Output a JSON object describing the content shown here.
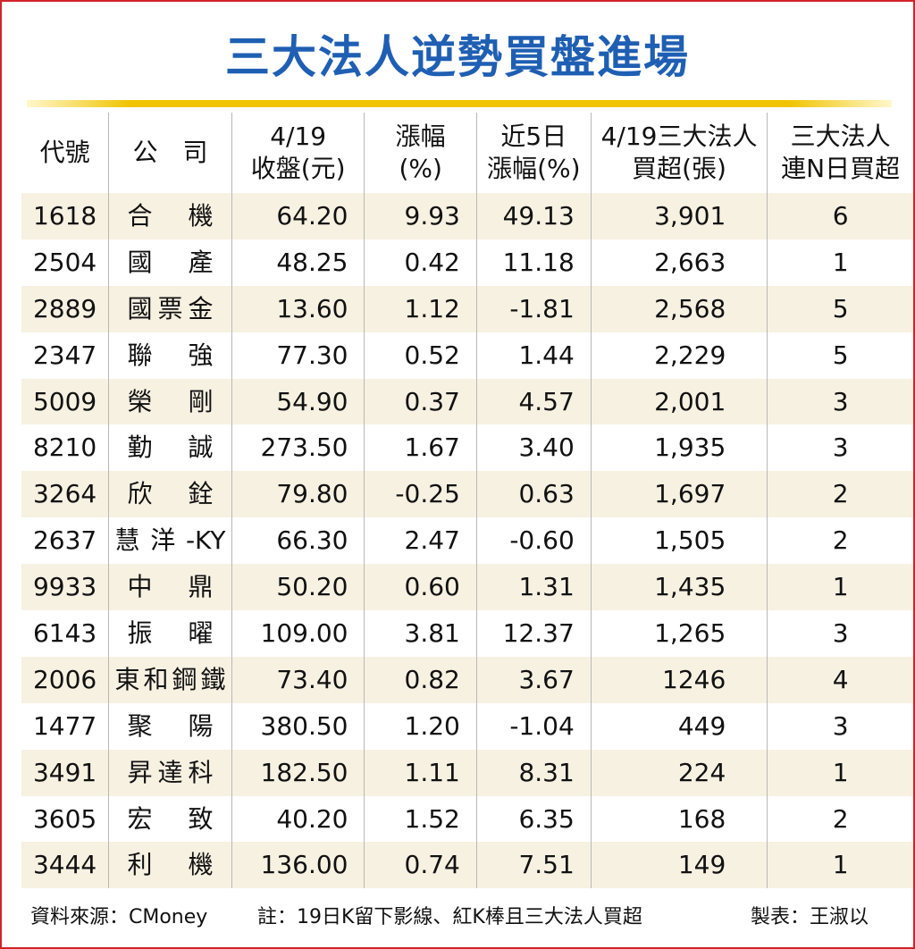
{
  "title": "三大法人逆勢買盤進場",
  "headers": {
    "code": "代號",
    "company": "公　司",
    "close_l1": "4/19",
    "close_l2": "收盤(元)",
    "change_l1": "漲幅",
    "change_l2": "(%)",
    "week_l1": "近5日",
    "week_l2": "漲幅(%)",
    "buy_l1": "4/19三大法人",
    "buy_l2": "買超(張)",
    "days_l1": "三大法人",
    "days_l2": "連N日買超"
  },
  "rows": [
    {
      "code": "1618",
      "name": "合　機",
      "close": "64.20",
      "chg": "9.93",
      "chg5": "49.13",
      "buy": "3,901",
      "days": "6"
    },
    {
      "code": "2504",
      "name": "國　產",
      "close": "48.25",
      "chg": "0.42",
      "chg5": "11.18",
      "buy": "2,663",
      "days": "1"
    },
    {
      "code": "2889",
      "name": "國票金",
      "close": "13.60",
      "chg": "1.12",
      "chg5": "-1.81",
      "buy": "2,568",
      "days": "5"
    },
    {
      "code": "2347",
      "name": "聯　強",
      "close": "77.30",
      "chg": "0.52",
      "chg5": "1.44",
      "buy": "2,229",
      "days": "5"
    },
    {
      "code": "5009",
      "name": "榮　剛",
      "close": "54.90",
      "chg": "0.37",
      "chg5": "4.57",
      "buy": "2,001",
      "days": "3"
    },
    {
      "code": "8210",
      "name": "勤　誠",
      "close": "273.50",
      "chg": "1.67",
      "chg5": "3.40",
      "buy": "1,935",
      "days": "3"
    },
    {
      "code": "3264",
      "name": "欣　銓",
      "close": "79.80",
      "chg": "-0.25",
      "chg5": "0.63",
      "buy": "1,697",
      "days": "2"
    },
    {
      "code": "2637",
      "name": "慧洋-KY",
      "close": "66.30",
      "chg": "2.47",
      "chg5": "-0.60",
      "buy": "1,505",
      "days": "2"
    },
    {
      "code": "9933",
      "name": "中　鼎",
      "close": "50.20",
      "chg": "0.60",
      "chg5": "1.31",
      "buy": "1,435",
      "days": "1"
    },
    {
      "code": "6143",
      "name": "振　曜",
      "close": "109.00",
      "chg": "3.81",
      "chg5": "12.37",
      "buy": "1,265",
      "days": "3"
    },
    {
      "code": "2006",
      "name": "東和鋼鐵",
      "close": "73.40",
      "chg": "0.82",
      "chg5": "3.67",
      "buy": "1246",
      "days": "4"
    },
    {
      "code": "1477",
      "name": "聚　陽",
      "close": "380.50",
      "chg": "1.20",
      "chg5": "-1.04",
      "buy": "449",
      "days": "3"
    },
    {
      "code": "3491",
      "name": "昇達科",
      "close": "182.50",
      "chg": "1.11",
      "chg5": "8.31",
      "buy": "224",
      "days": "1"
    },
    {
      "code": "3605",
      "name": "宏　致",
      "close": "40.20",
      "chg": "1.52",
      "chg5": "6.35",
      "buy": "168",
      "days": "2"
    },
    {
      "code": "3444",
      "name": "利　機",
      "close": "136.00",
      "chg": "0.74",
      "chg5": "7.51",
      "buy": "149",
      "days": "1"
    }
  ],
  "footer": {
    "source": "資料來源：CMoney",
    "note": "註：19日K留下影線、紅K棒且三大法人買超",
    "author": "製表：王淑以"
  },
  "colors": {
    "title": "#1f5fb3",
    "rule": "#f0c400",
    "border": "#d2232a",
    "row_shade": "#f7f1e2"
  }
}
